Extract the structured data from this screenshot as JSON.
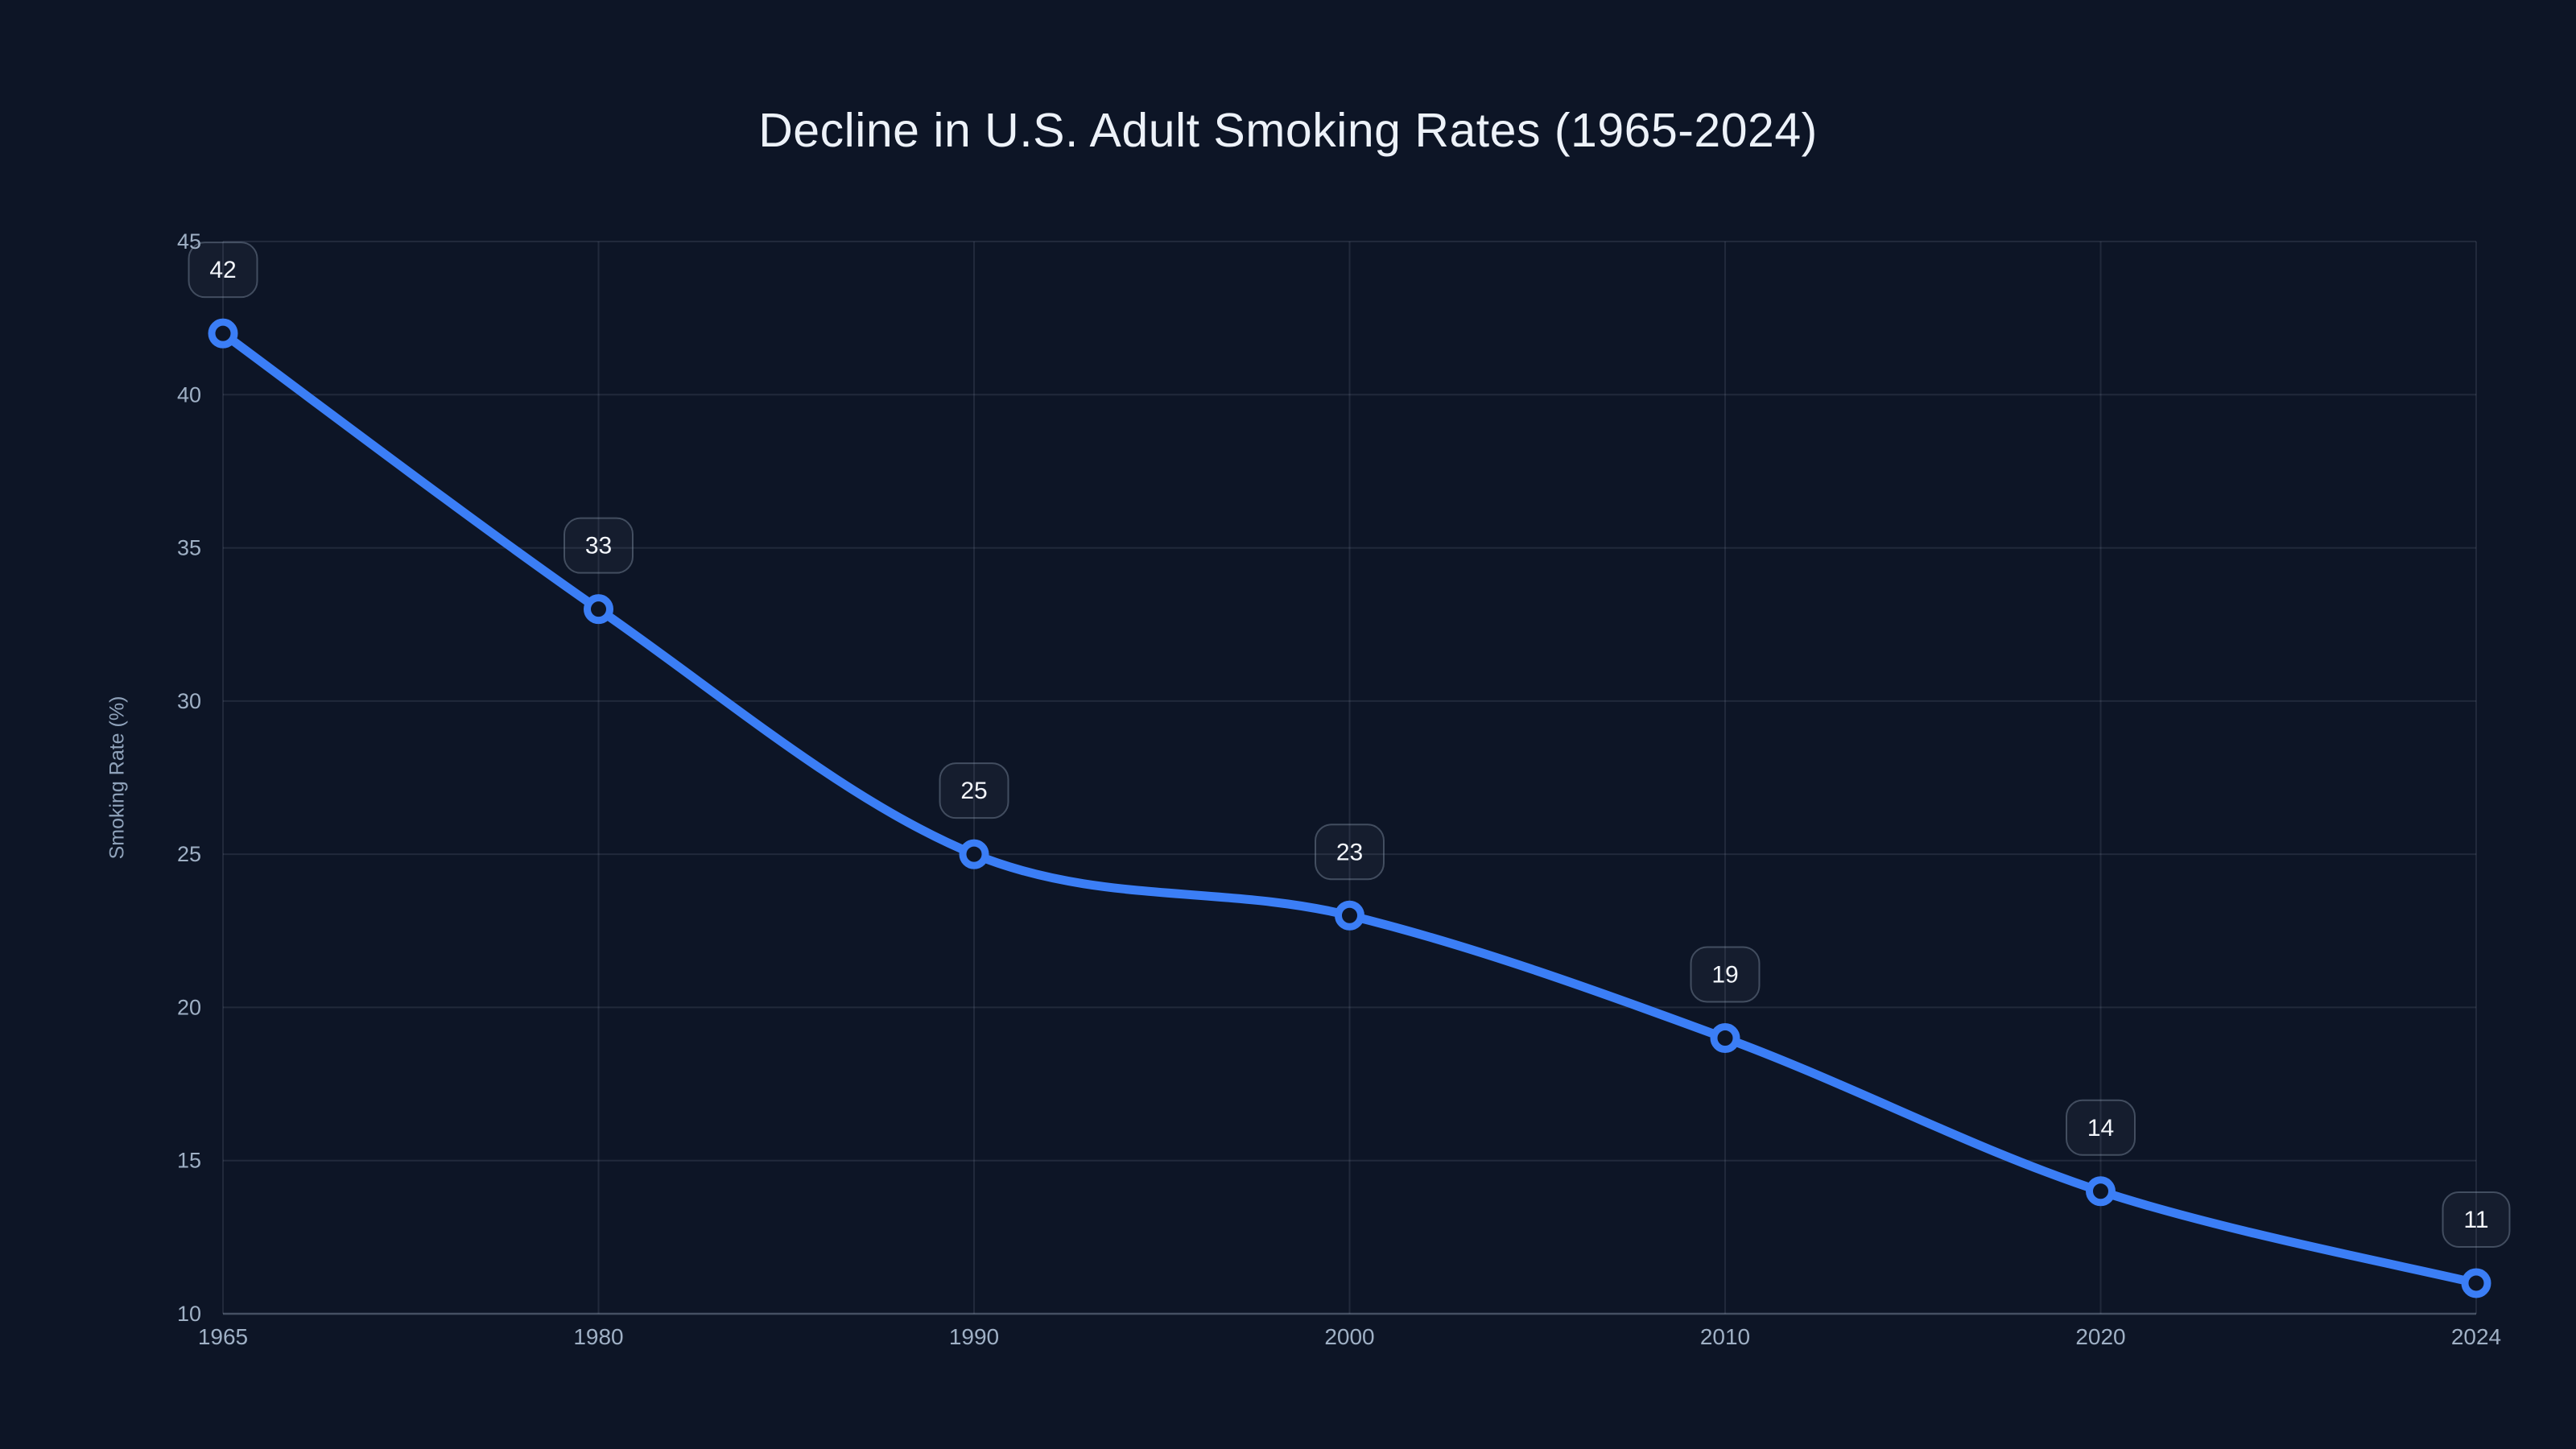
{
  "page": {
    "background_color": "#0d1526"
  },
  "header": {
    "title": "Decline in U.S. Adult Smoking Rates (1965-2024)"
  },
  "chart_data": {
    "type": "line",
    "title": "Decline in U.S. Adult Smoking Rates (1965-2024)",
    "categories": [
      "1965",
      "1980",
      "1990",
      "2000",
      "2010",
      "2020",
      "2024"
    ],
    "series": [
      {
        "name": "Smoking Rate",
        "values": [
          42,
          33,
          25,
          23,
          19,
          14,
          11
        ]
      }
    ],
    "data_labels": [
      "42",
      "33",
      "25",
      "23",
      "19",
      "14",
      "11"
    ],
    "xlabel": "",
    "ylabel": "Smoking Rate (%)",
    "ylim": [
      10,
      45
    ],
    "yticks": [
      10,
      15,
      20,
      25,
      30,
      35,
      40,
      45
    ],
    "grid": true,
    "legend_position": "none",
    "style": {
      "line_color": "#3b7ef6",
      "marker_style": "hollow-circle",
      "marker_fill": "#0d1526",
      "grid_color": "rgba(148,163,184,0.15)",
      "axis_line_color": "rgba(148,163,184,0.42)",
      "tick_label_color": "#9fb0c5",
      "title_color": "#edf2f9",
      "label_box_fill": "rgba(148,163,184,0.06)",
      "label_box_border": "rgba(148,163,184,0.38)",
      "label_text_color": "#f3f6fb"
    }
  }
}
